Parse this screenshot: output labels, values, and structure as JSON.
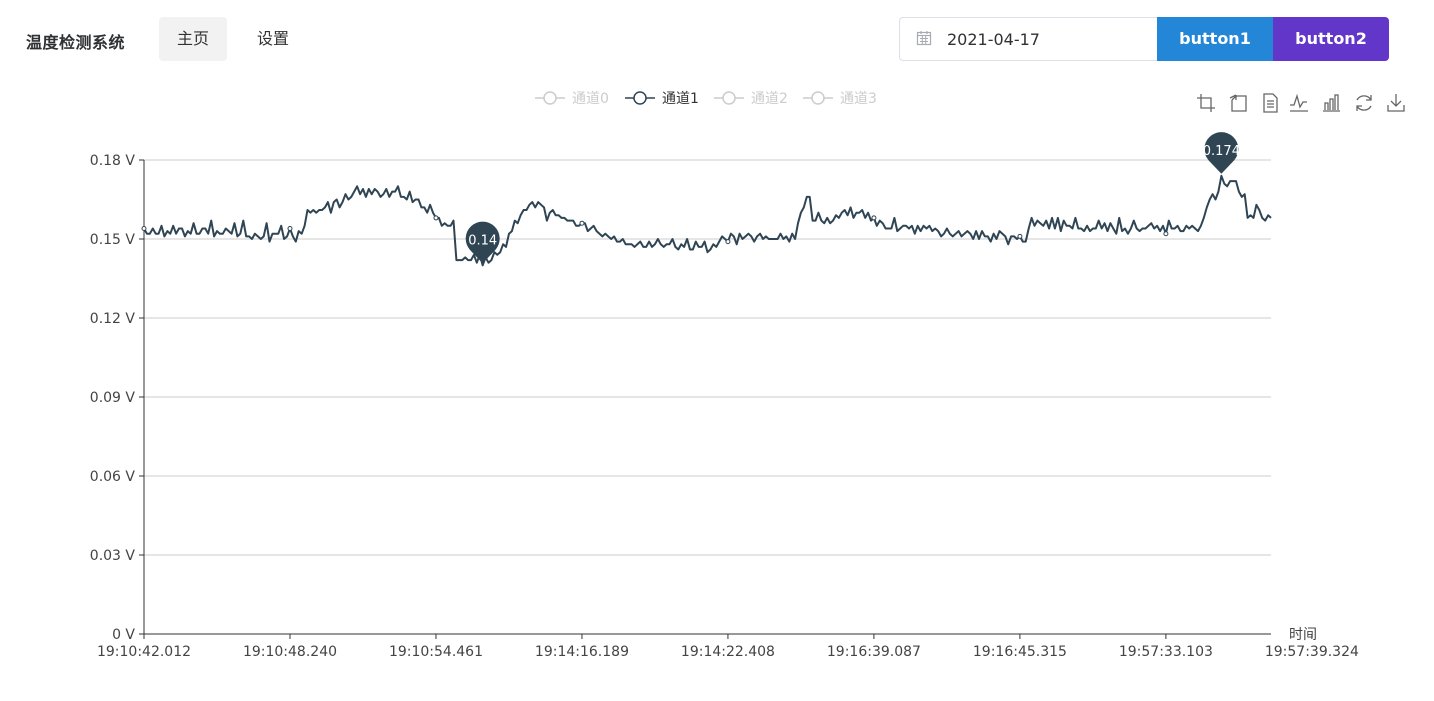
{
  "header": {
    "app_title": "温度检测系统",
    "nav": [
      {
        "label": "主页",
        "active": true
      },
      {
        "label": "设置",
        "active": false
      }
    ],
    "date_value": "2021-04-17",
    "button1_label": "button1",
    "button2_label": "button2",
    "colors": {
      "button1": "#2486d6",
      "button2": "#6236c9"
    }
  },
  "toolbox": [
    "zoom-icon",
    "zoom-reset-icon",
    "data-view-icon",
    "line-chart-icon",
    "bar-chart-icon",
    "restore-icon",
    "download-icon"
  ],
  "chart_data": {
    "type": "line",
    "legend": [
      {
        "name": "通道0",
        "active": false
      },
      {
        "name": "通道1",
        "active": true
      },
      {
        "name": "通道2",
        "active": false
      },
      {
        "name": "通道3",
        "active": false
      }
    ],
    "legend_position": "top-center",
    "xlabel": "时间",
    "x_ticks": [
      "19:10:42.012",
      "19:10:48.240",
      "19:10:54.461",
      "19:14:16.189",
      "19:14:22.408",
      "19:16:39.087",
      "19:16:45.315",
      "19:57:33.103",
      "19:57:39.324"
    ],
    "y_ticks": [
      "0 V",
      "0.03 V",
      "0.06 V",
      "0.09 V",
      "0.12 V",
      "0.15 V",
      "0.18 V"
    ],
    "ylim": [
      0,
      0.18
    ],
    "grid": true,
    "series": [
      {
        "name": "通道1",
        "color": "#2f4554",
        "values": [
          0.154,
          0.152,
          0.152,
          0.154,
          0.152,
          0.152,
          0.155,
          0.151,
          0.153,
          0.152,
          0.155,
          0.152,
          0.154,
          0.154,
          0.151,
          0.153,
          0.152,
          0.156,
          0.152,
          0.152,
          0.154,
          0.154,
          0.152,
          0.157,
          0.151,
          0.153,
          0.152,
          0.152,
          0.154,
          0.153,
          0.152,
          0.156,
          0.151,
          0.152,
          0.157,
          0.151,
          0.151,
          0.15,
          0.152,
          0.151,
          0.15,
          0.151,
          0.156,
          0.149,
          0.152,
          0.152,
          0.152,
          0.155,
          0.15,
          0.151,
          0.154,
          0.151,
          0.149,
          0.153,
          0.152,
          0.155,
          0.161,
          0.16,
          0.161,
          0.16,
          0.161,
          0.161,
          0.162,
          0.164,
          0.16,
          0.164,
          0.165,
          0.162,
          0.164,
          0.167,
          0.165,
          0.166,
          0.168,
          0.17,
          0.167,
          0.169,
          0.166,
          0.169,
          0.167,
          0.169,
          0.168,
          0.166,
          0.167,
          0.169,
          0.166,
          0.168,
          0.168,
          0.17,
          0.166,
          0.166,
          0.165,
          0.168,
          0.164,
          0.165,
          0.165,
          0.162,
          0.162,
          0.16,
          0.163,
          0.16,
          0.158,
          0.158,
          0.155,
          0.156,
          0.155,
          0.155,
          0.157,
          0.142,
          0.142,
          0.142,
          0.143,
          0.142,
          0.142,
          0.144,
          0.141,
          0.144,
          0.14,
          0.143,
          0.141,
          0.142,
          0.145,
          0.144,
          0.145,
          0.148,
          0.147,
          0.152,
          0.153,
          0.157,
          0.156,
          0.159,
          0.161,
          0.161,
          0.163,
          0.164,
          0.162,
          0.164,
          0.163,
          0.162,
          0.157,
          0.16,
          0.161,
          0.159,
          0.159,
          0.158,
          0.158,
          0.157,
          0.157,
          0.157,
          0.155,
          0.155,
          0.156,
          0.156,
          0.153,
          0.154,
          0.155,
          0.153,
          0.152,
          0.151,
          0.152,
          0.151,
          0.15,
          0.151,
          0.149,
          0.149,
          0.15,
          0.148,
          0.148,
          0.148,
          0.147,
          0.148,
          0.149,
          0.147,
          0.147,
          0.149,
          0.147,
          0.148,
          0.15,
          0.148,
          0.147,
          0.148,
          0.148,
          0.15,
          0.147,
          0.146,
          0.148,
          0.147,
          0.15,
          0.146,
          0.146,
          0.149,
          0.147,
          0.147,
          0.149,
          0.145,
          0.146,
          0.148,
          0.147,
          0.149,
          0.151,
          0.15,
          0.149,
          0.152,
          0.151,
          0.148,
          0.152,
          0.15,
          0.151,
          0.152,
          0.151,
          0.149,
          0.151,
          0.152,
          0.15,
          0.151,
          0.15,
          0.15,
          0.15,
          0.15,
          0.152,
          0.15,
          0.151,
          0.149,
          0.152,
          0.15,
          0.156,
          0.16,
          0.162,
          0.166,
          0.166,
          0.157,
          0.157,
          0.16,
          0.157,
          0.156,
          0.158,
          0.156,
          0.157,
          0.159,
          0.158,
          0.16,
          0.161,
          0.159,
          0.162,
          0.158,
          0.16,
          0.16,
          0.161,
          0.158,
          0.16,
          0.157,
          0.158,
          0.155,
          0.157,
          0.156,
          0.154,
          0.154,
          0.154,
          0.158,
          0.153,
          0.154,
          0.155,
          0.155,
          0.154,
          0.155,
          0.152,
          0.155,
          0.153,
          0.155,
          0.154,
          0.155,
          0.153,
          0.154,
          0.153,
          0.151,
          0.152,
          0.154,
          0.152,
          0.151,
          0.152,
          0.153,
          0.151,
          0.152,
          0.153,
          0.152,
          0.15,
          0.153,
          0.15,
          0.153,
          0.151,
          0.151,
          0.149,
          0.152,
          0.15,
          0.153,
          0.152,
          0.151,
          0.148,
          0.151,
          0.151,
          0.15,
          0.151,
          0.149,
          0.149,
          0.154,
          0.158,
          0.155,
          0.157,
          0.156,
          0.155,
          0.157,
          0.154,
          0.158,
          0.154,
          0.158,
          0.153,
          0.157,
          0.155,
          0.155,
          0.154,
          0.158,
          0.154,
          0.154,
          0.153,
          0.155,
          0.153,
          0.154,
          0.154,
          0.157,
          0.154,
          0.156,
          0.153,
          0.156,
          0.154,
          0.152,
          0.158,
          0.153,
          0.154,
          0.152,
          0.154,
          0.157,
          0.154,
          0.153,
          0.154,
          0.154,
          0.155,
          0.156,
          0.154,
          0.155,
          0.153,
          0.155,
          0.152,
          0.157,
          0.154,
          0.154,
          0.155,
          0.153,
          0.153,
          0.155,
          0.154,
          0.155,
          0.154,
          0.153,
          0.155,
          0.158,
          0.162,
          0.165,
          0.167,
          0.165,
          0.168,
          0.174,
          0.171,
          0.17,
          0.172,
          0.172,
          0.172,
          0.168,
          0.166,
          0.167,
          0.158,
          0.159,
          0.158,
          0.163,
          0.161,
          0.158,
          0.157,
          0.159,
          0.158
        ]
      }
    ],
    "annotations": [
      {
        "label": "0.14",
        "type": "min",
        "value": 0.14
      },
      {
        "label": "0.174",
        "type": "max",
        "value": 0.174
      }
    ],
    "colors": {
      "pin": "#2f4554",
      "axis": "#333333",
      "grid": "#cccccc",
      "legend_inactive": "#cccccc"
    }
  }
}
